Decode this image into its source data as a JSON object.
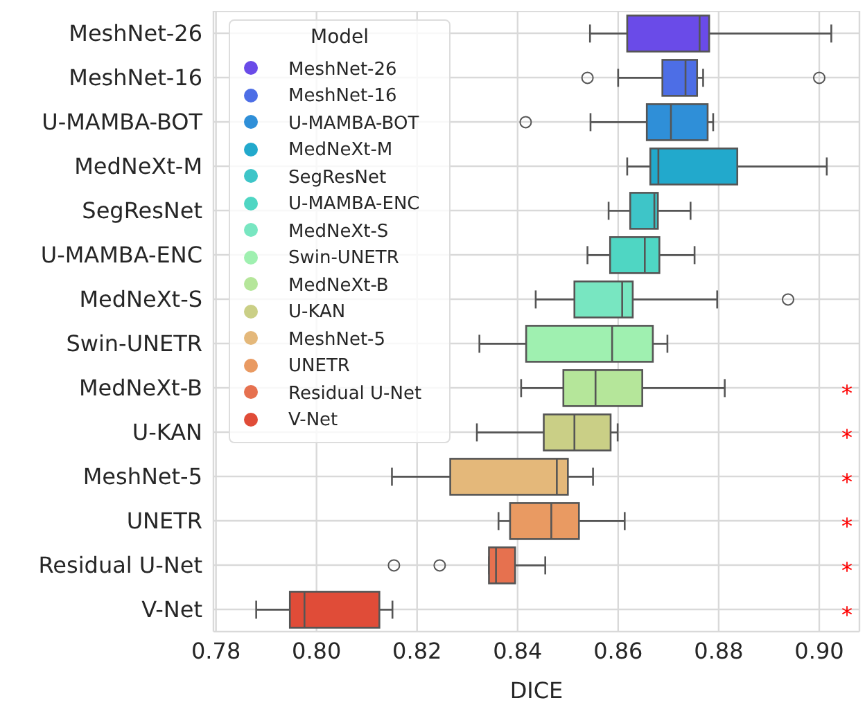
{
  "chart_data": {
    "type": "box",
    "orientation": "horizontal",
    "xlabel": "DICE",
    "legend_title": "Model",
    "legend": "top left",
    "grid": true,
    "categories": [
      "MeshNet-26",
      "MeshNet-16",
      "U-MAMBA-BOT",
      "MedNeXt-M",
      "SegResNet",
      "U-MAMBA-ENC",
      "MedNeXt-S",
      "Swin-UNETR",
      "MedNeXt-B",
      "U-KAN",
      "MeshNet-5",
      "UNETR",
      "Residual U-Net",
      "V-Net"
    ],
    "series": [
      {
        "name": "MeshNet-26",
        "color": "#6a4be8",
        "boxes": [
          {
            "low": 0.8544,
            "q1": 0.8618,
            "median": 0.8762,
            "q3": 0.8781,
            "high": 0.9024
          },
          null,
          null,
          null,
          null,
          null,
          null,
          null,
          null,
          null,
          null,
          null,
          null,
          null
        ]
      },
      {
        "name": "MeshNet-16",
        "color": "#4d6ee6",
        "boxes": [
          null,
          {
            "low": 0.86,
            "q1": 0.8688,
            "median": 0.8734,
            "q3": 0.8757,
            "high": 0.8769,
            "outliers": [
              0.8539,
              0.9
            ]
          },
          null,
          null,
          null,
          null,
          null,
          null,
          null,
          null,
          null,
          null,
          null,
          null
        ]
      },
      {
        "name": "U-MAMBA-BOT",
        "color": "#2f8fd8",
        "boxes": [
          null,
          null,
          {
            "low": 0.8545,
            "q1": 0.8657,
            "median": 0.8705,
            "q3": 0.8778,
            "high": 0.8789,
            "outliers": [
              0.8416
            ]
          },
          null,
          null,
          null,
          null,
          null,
          null,
          null,
          null,
          null,
          null,
          null
        ]
      },
      {
        "name": "MedNeXt-M",
        "color": "#22a9cc",
        "boxes": [
          null,
          null,
          null,
          {
            "low": 0.8618,
            "q1": 0.8664,
            "median": 0.868,
            "q3": 0.8837,
            "high": 0.9015
          },
          null,
          null,
          null,
          null,
          null,
          null,
          null,
          null,
          null,
          null
        ]
      },
      {
        "name": "SegResNet",
        "color": "#3ec5c8",
        "boxes": [
          null,
          null,
          null,
          null,
          {
            "low": 0.8581,
            "q1": 0.8624,
            "median": 0.8672,
            "q3": 0.8679,
            "high": 0.8744
          },
          null,
          null,
          null,
          null,
          null,
          null,
          null,
          null,
          null
        ]
      },
      {
        "name": "U-MAMBA-ENC",
        "color": "#4fd6c3",
        "boxes": [
          null,
          null,
          null,
          null,
          null,
          {
            "low": 0.8539,
            "q1": 0.8584,
            "median": 0.8653,
            "q3": 0.8682,
            "high": 0.8752
          },
          null,
          null,
          null,
          null,
          null,
          null,
          null,
          null
        ]
      },
      {
        "name": "MedNeXt-S",
        "color": "#78e6c1",
        "boxes": [
          null,
          null,
          null,
          null,
          null,
          null,
          {
            "low": 0.8436,
            "q1": 0.8513,
            "median": 0.8608,
            "q3": 0.8629,
            "high": 0.8797,
            "outliers": [
              0.8938
            ]
          },
          null,
          null,
          null,
          null,
          null,
          null,
          null
        ]
      },
      {
        "name": "Swin-UNETR",
        "color": "#9ff0b0",
        "boxes": [
          null,
          null,
          null,
          null,
          null,
          null,
          null,
          {
            "low": 0.8324,
            "q1": 0.8417,
            "median": 0.8588,
            "q3": 0.8669,
            "high": 0.8698
          },
          null,
          null,
          null,
          null,
          null,
          null
        ]
      },
      {
        "name": "MedNeXt-B",
        "color": "#b5e69a",
        "boxes": [
          null,
          null,
          null,
          null,
          null,
          null,
          null,
          null,
          {
            "low": 0.8407,
            "q1": 0.8491,
            "median": 0.8555,
            "q3": 0.8648,
            "high": 0.8812
          },
          null,
          null,
          null,
          null,
          null
        ]
      },
      {
        "name": "U-KAN",
        "color": "#cacf86",
        "boxes": [
          null,
          null,
          null,
          null,
          null,
          null,
          null,
          null,
          null,
          {
            "low": 0.8319,
            "q1": 0.8452,
            "median": 0.8513,
            "q3": 0.8585,
            "high": 0.8599
          },
          null,
          null,
          null,
          null
        ]
      },
      {
        "name": "MeshNet-5",
        "color": "#e4b87a",
        "boxes": [
          null,
          null,
          null,
          null,
          null,
          null,
          null,
          null,
          null,
          null,
          {
            "low": 0.815,
            "q1": 0.8266,
            "median": 0.8478,
            "q3": 0.85,
            "high": 0.855
          },
          null,
          null,
          null
        ]
      },
      {
        "name": "UNETR",
        "color": "#e99a62",
        "boxes": [
          null,
          null,
          null,
          null,
          null,
          null,
          null,
          null,
          null,
          null,
          null,
          {
            "low": 0.8362,
            "q1": 0.8385,
            "median": 0.8467,
            "q3": 0.8522,
            "high": 0.8613
          },
          null,
          null
        ]
      },
      {
        "name": "Residual U-Net",
        "color": "#e6714f",
        "boxes": [
          null,
          null,
          null,
          null,
          null,
          null,
          null,
          null,
          null,
          null,
          null,
          null,
          {
            "low": 0.8343,
            "q1": 0.8343,
            "median": 0.8357,
            "q3": 0.8395,
            "high": 0.8455,
            "outliers": [
              0.8154,
              0.8245
            ]
          },
          null
        ]
      },
      {
        "name": "V-Net",
        "color": "#e04c38",
        "boxes": [
          null,
          null,
          null,
          null,
          null,
          null,
          null,
          null,
          null,
          null,
          null,
          null,
          null,
          {
            "low": 0.788,
            "q1": 0.7947,
            "median": 0.7976,
            "q3": 0.8125,
            "high": 0.8151
          }
        ]
      }
    ],
    "xlim": [
      0.7795,
      0.908
    ],
    "xticks": [
      {
        "value": 0.78,
        "label": "0.78"
      },
      {
        "value": 0.8,
        "label": "0.80"
      },
      {
        "value": 0.82,
        "label": "0.82"
      },
      {
        "value": 0.84,
        "label": "0.84"
      },
      {
        "value": 0.86,
        "label": "0.86"
      },
      {
        "value": 0.88,
        "label": "0.88"
      },
      {
        "value": 0.9,
        "label": "0.90"
      }
    ],
    "annotations": [
      "*",
      "*",
      "*",
      "*",
      "*",
      "*"
    ]
  }
}
